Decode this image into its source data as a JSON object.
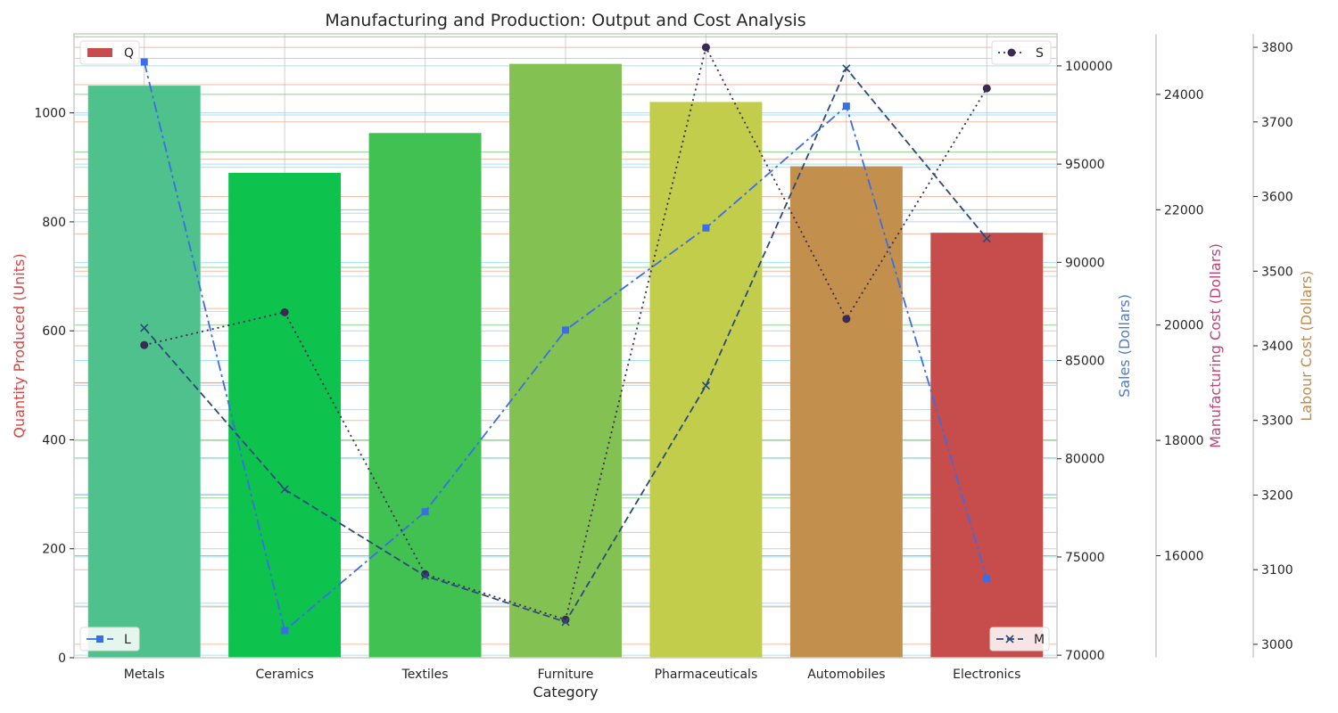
{
  "chart_data": {
    "type": "bar",
    "title": "Manufacturing and Production: Output and Cost Analysis",
    "xlabel": "Category",
    "categories": [
      "Metals",
      "Ceramics",
      "Textiles",
      "Furniture",
      "Pharmaceuticals",
      "Automobiles",
      "Electronics"
    ],
    "grid": true,
    "axes": {
      "quantity": {
        "label": "Quantity Produced (Units)",
        "color": "#d64545",
        "range": [
          0,
          1145
        ],
        "ticks": [
          0,
          200,
          400,
          600,
          800,
          1000
        ]
      },
      "sales": {
        "label": "Sales (Dollars)",
        "color": "#4c7bd1",
        "range": [
          69870,
          101630
        ],
        "ticks": [
          70000,
          75000,
          80000,
          85000,
          90000,
          95000,
          100000
        ]
      },
      "manufacturing": {
        "label": "Manufacturing Cost (Dollars)",
        "color": "#c0427f",
        "range": [
          14230,
          25050
        ],
        "ticks": [
          16000,
          18000,
          20000,
          22000,
          24000
        ]
      },
      "labour": {
        "label": "Labour Cost (Dollars)",
        "color": "#c08a4e",
        "range": [
          2982,
          3818
        ],
        "ticks": [
          3000,
          3100,
          3200,
          3300,
          3400,
          3500,
          3600,
          3700,
          3800
        ]
      }
    },
    "series": [
      {
        "name": "Q",
        "type": "bar",
        "axis": "quantity",
        "values": [
          1050,
          890,
          963,
          1090,
          1020,
          902,
          780
        ],
        "colors": [
          "#4ec18c",
          "#0dc24d",
          "#40c152",
          "#83c152",
          "#c2cd4c",
          "#c38f4c",
          "#c74c4c"
        ],
        "legend": "top-left"
      },
      {
        "name": "L",
        "type": "line",
        "axis": "sales",
        "values": [
          100200,
          71250,
          77300,
          86550,
          91750,
          97950,
          73900
        ],
        "color": "#3a6ee8",
        "dash": "12,4,3,4",
        "marker": "square",
        "legend": "bottom-left"
      },
      {
        "name": "S",
        "type": "line",
        "axis": "labour",
        "values": [
          3401,
          3445,
          3094,
          3033,
          3800,
          3436,
          3745
        ],
        "color": "#3a2a55",
        "dash": "2,4",
        "marker": "circle",
        "legend": "top-right"
      },
      {
        "name": "M",
        "type": "line",
        "axis": "manufacturing",
        "values": [
          19950,
          17150,
          15650,
          14850,
          18950,
          24450,
          21500
        ],
        "color": "#2b4a7a",
        "dash": "8,4",
        "marker": "x",
        "legend": "bottom-right"
      }
    ]
  }
}
